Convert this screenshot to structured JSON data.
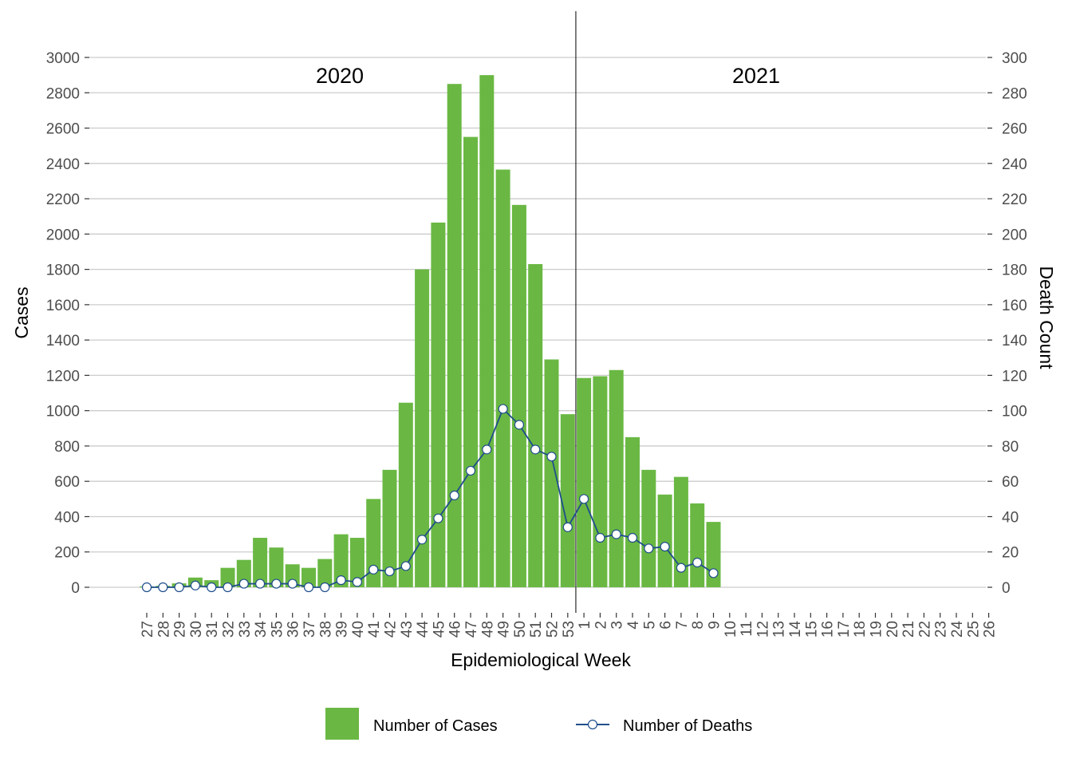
{
  "chart_data": {
    "type": "bar",
    "x": [
      "27",
      "28",
      "29",
      "30",
      "31",
      "32",
      "33",
      "34",
      "35",
      "36",
      "37",
      "38",
      "39",
      "40",
      "41",
      "42",
      "43",
      "44",
      "45",
      "46",
      "47",
      "48",
      "49",
      "50",
      "51",
      "52",
      "53",
      "1",
      "2",
      "3",
      "4",
      "5",
      "6",
      "7",
      "8",
      "9",
      "10",
      "11",
      "12",
      "13",
      "14",
      "15",
      "16",
      "17",
      "18",
      "19",
      "20",
      "21",
      "22",
      "23",
      "24",
      "25",
      "26"
    ],
    "xlabel": "Epidemiological Week",
    "ylabel": "Cases",
    "ylabel_right": "Death Count",
    "ylim": [
      0,
      3000
    ],
    "ylim_right": [
      0,
      300
    ],
    "yticks": [
      0,
      200,
      400,
      600,
      800,
      1000,
      1200,
      1400,
      1600,
      1800,
      2000,
      2200,
      2400,
      2600,
      2800,
      3000
    ],
    "yticks_right": [
      0,
      20,
      40,
      60,
      80,
      100,
      120,
      140,
      160,
      180,
      200,
      220,
      240,
      260,
      280,
      300
    ],
    "grid": "horizontal",
    "year_labels": [
      "2020",
      "2021"
    ],
    "divider_between_weeks": [
      "53",
      "1"
    ],
    "legend_position": "bottom",
    "colors": {
      "cases": "#6ab843",
      "deaths_line": "#1f4e8c",
      "deaths_marker_fill": "#ffffff"
    },
    "series": [
      {
        "name": "Number of Cases",
        "type": "bar",
        "axis": "left",
        "values": [
          5,
          8,
          22,
          55,
          40,
          110,
          155,
          280,
          225,
          130,
          110,
          160,
          300,
          280,
          500,
          665,
          1045,
          1800,
          2065,
          2850,
          2550,
          2900,
          2365,
          2165,
          1830,
          1290,
          980,
          1185,
          1195,
          1230,
          850,
          665,
          525,
          625,
          475,
          370,
          null,
          null,
          null,
          null,
          null,
          null,
          null,
          null,
          null,
          null,
          null,
          null,
          null,
          null,
          null,
          null,
          null
        ]
      },
      {
        "name": "Number of Deaths",
        "type": "line",
        "axis": "right",
        "values": [
          0,
          0,
          0,
          1,
          0,
          0,
          2,
          2,
          2,
          2,
          0,
          0,
          4,
          3,
          10,
          9,
          12,
          27,
          39,
          52,
          66,
          78,
          101,
          92,
          78,
          74,
          34,
          50,
          28,
          30,
          28,
          22,
          23,
          11,
          14,
          8,
          null,
          null,
          null,
          null,
          null,
          null,
          null,
          null,
          null,
          null,
          null,
          null,
          null,
          null,
          null,
          null,
          null
        ]
      }
    ]
  }
}
